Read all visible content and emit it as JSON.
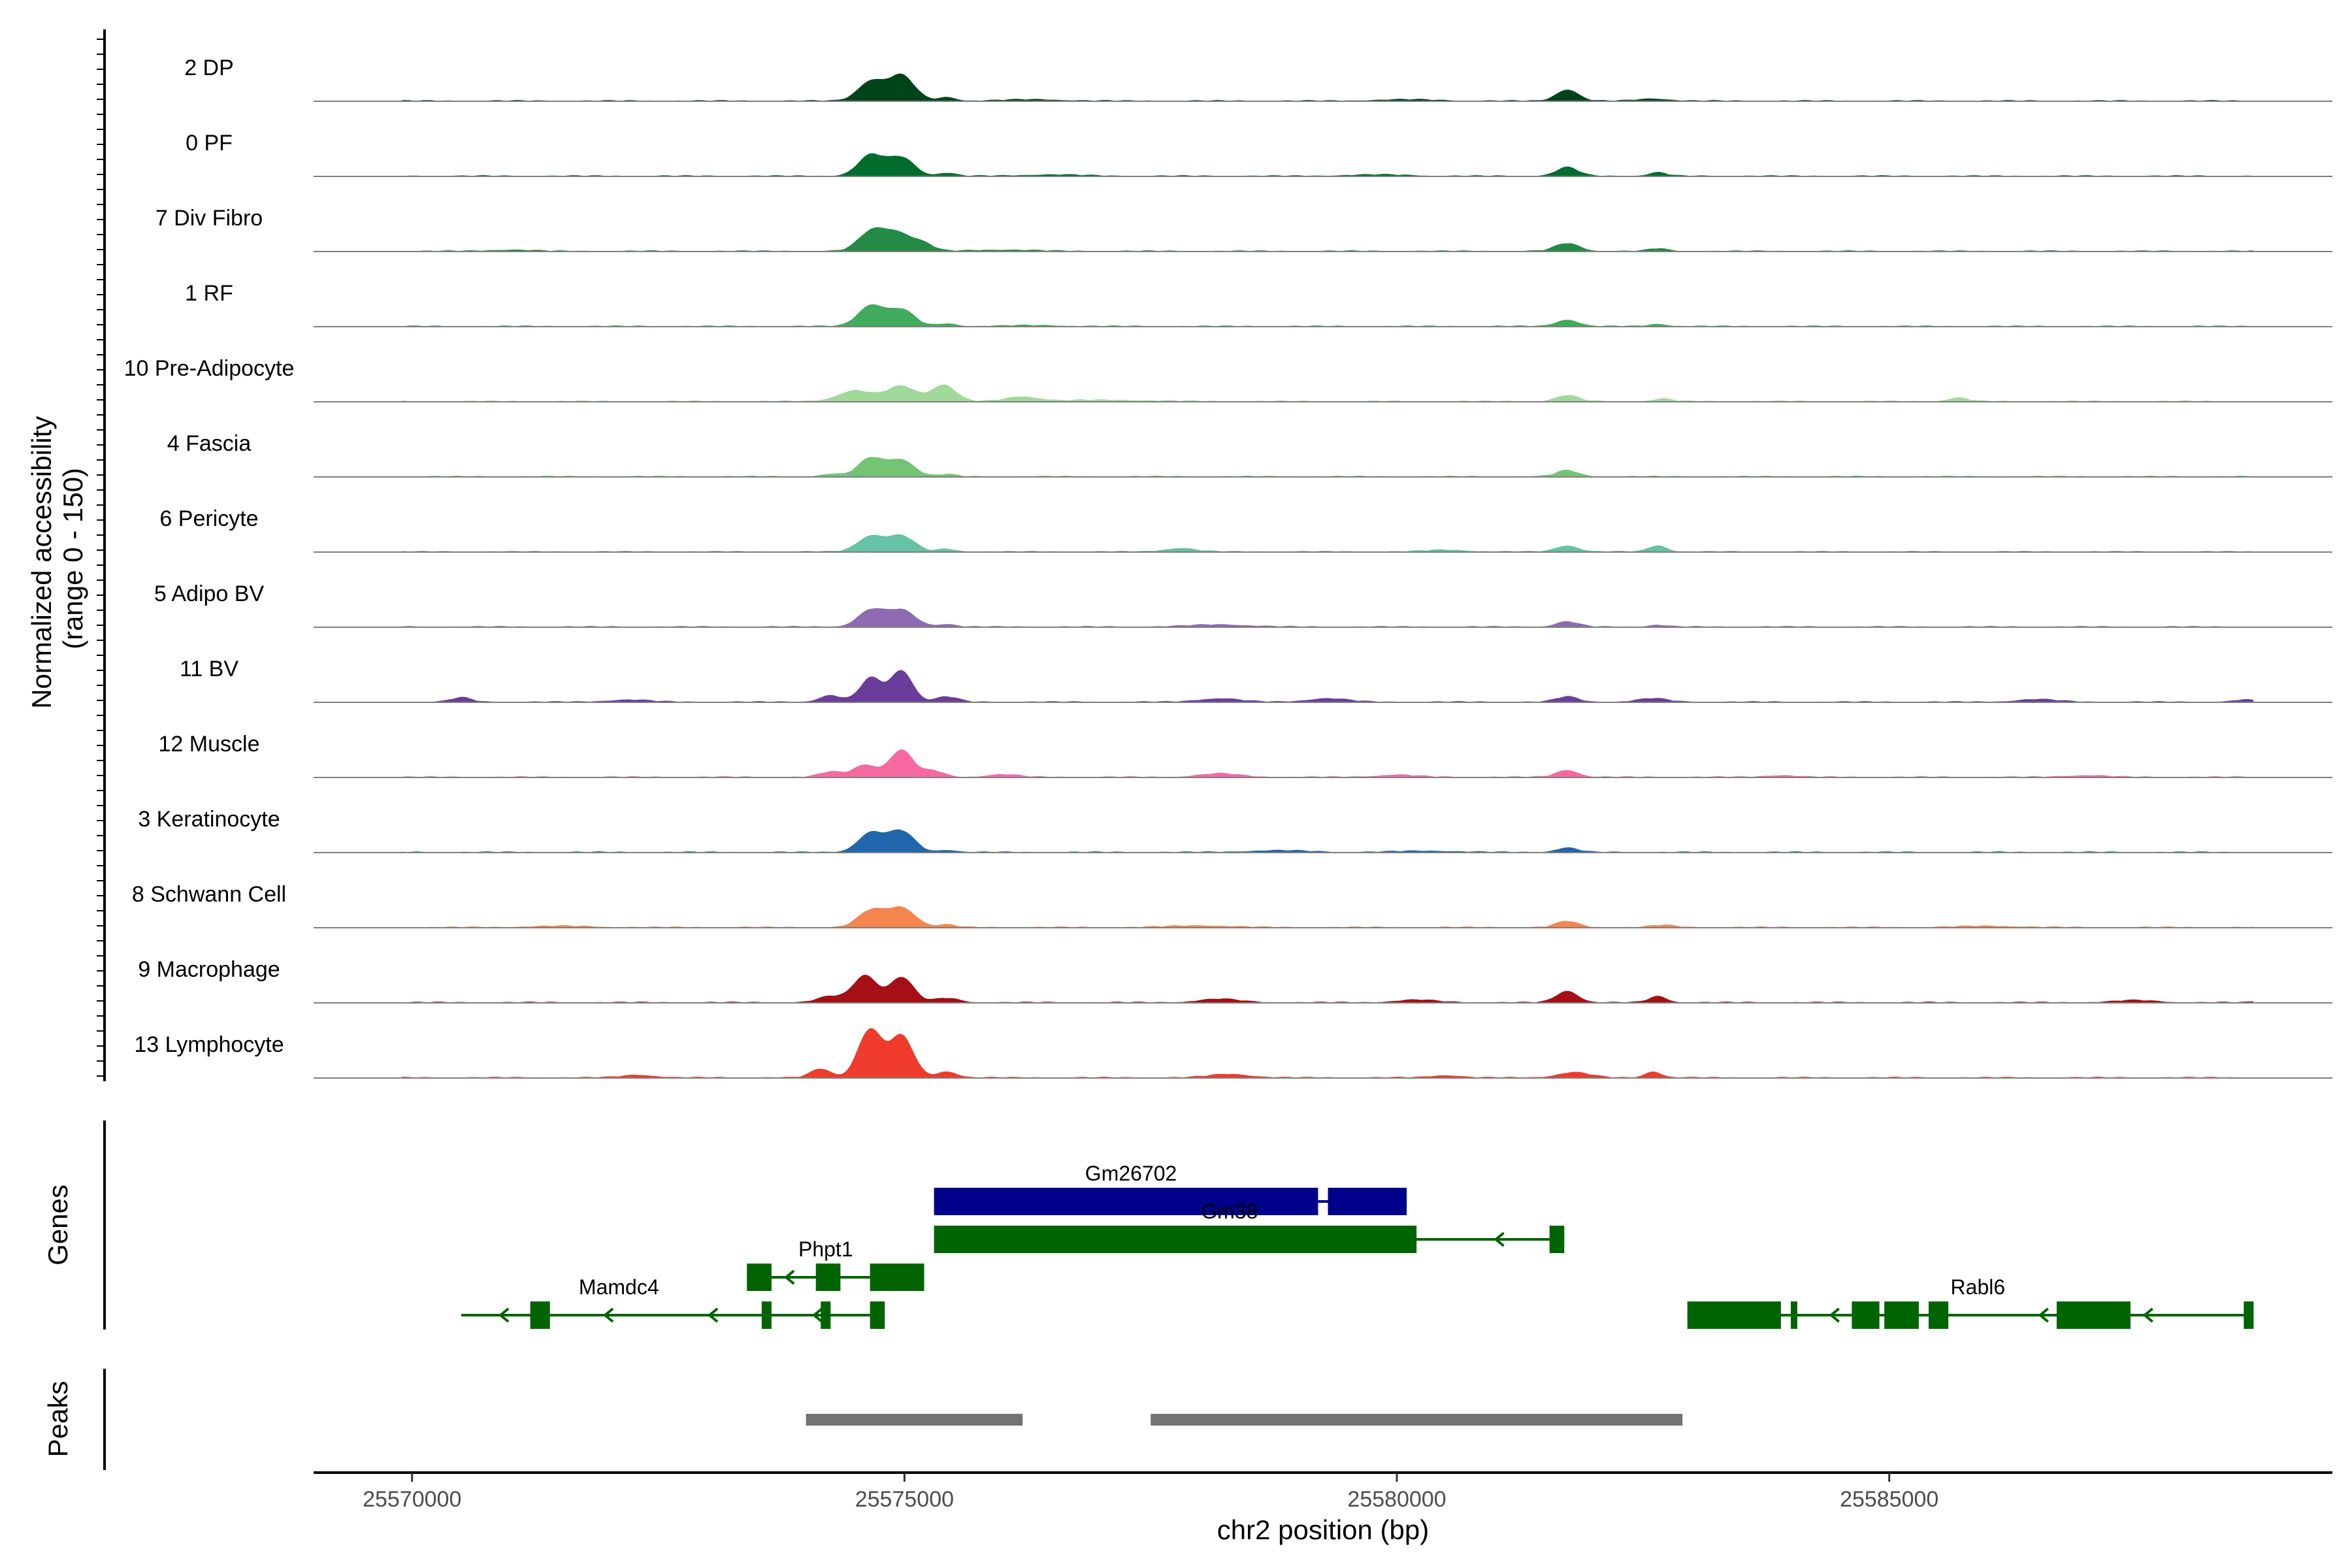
{
  "chart_data": {
    "type": "area",
    "xlabel": "chr2 position (bp)",
    "ylabel": "Normalized accessibility\n(range 0 - 150)",
    "ylabel_lines": [
      "Normalized accessibility",
      "(range 0 - 150)"
    ],
    "y_range": [
      0,
      150
    ],
    "xlim": [
      25569000,
      25589500
    ],
    "x_ticks": [
      25570000,
      25575000,
      25580000,
      25585000
    ],
    "x_tick_labels": [
      "25570000",
      "25575000",
      "25580000",
      "25585000"
    ],
    "tracks": [
      {
        "name": "2 DP",
        "color": "#00441b",
        "peaks": [
          [
            25574660,
            45,
            130
          ],
          [
            25574970,
            58,
            130
          ],
          [
            25575430,
            8,
            90
          ],
          [
            25581730,
            26,
            110
          ],
          [
            25576300,
            3,
            300
          ],
          [
            25580100,
            3,
            300
          ],
          [
            25582600,
            5,
            150
          ]
        ]
      },
      {
        "name": "0 PF",
        "color": "#006d2c",
        "peaks": [
          [
            25574660,
            48,
            130
          ],
          [
            25574970,
            42,
            130
          ],
          [
            25575430,
            7,
            90
          ],
          [
            25581730,
            20,
            110
          ],
          [
            25582650,
            8,
            90
          ],
          [
            25576500,
            3,
            300
          ],
          [
            25579800,
            3,
            300
          ]
        ]
      },
      {
        "name": "7 Div Fibro",
        "color": "#238b45",
        "peaks": [
          [
            25574660,
            42,
            130
          ],
          [
            25574930,
            42,
            150
          ],
          [
            25575200,
            14,
            100
          ],
          [
            25581730,
            18,
            120
          ],
          [
            25582650,
            6,
            90
          ],
          [
            25576000,
            3,
            300
          ],
          [
            25571000,
            3,
            200
          ]
        ]
      },
      {
        "name": "1 RF",
        "color": "#41ab5d",
        "peaks": [
          [
            25574660,
            48,
            130
          ],
          [
            25574970,
            38,
            130
          ],
          [
            25575430,
            6,
            90
          ],
          [
            25581730,
            15,
            110
          ],
          [
            25582650,
            5,
            90
          ],
          [
            25576300,
            2,
            300
          ]
        ]
      },
      {
        "name": "10 Pre-Adipocyte",
        "color": "#a1d99b",
        "peaks": [
          [
            25574500,
            25,
            170
          ],
          [
            25574970,
            35,
            150
          ],
          [
            25575400,
            38,
            120
          ],
          [
            25576200,
            10,
            160
          ],
          [
            25581730,
            14,
            110
          ],
          [
            25582700,
            6,
            90
          ],
          [
            25585700,
            8,
            100
          ],
          [
            25577000,
            3,
            500
          ]
        ]
      },
      {
        "name": "4 Fascia",
        "color": "#74c476",
        "peaks": [
          [
            25574660,
            42,
            130
          ],
          [
            25574970,
            38,
            130
          ],
          [
            25575430,
            5,
            90
          ],
          [
            25581730,
            14,
            110
          ],
          [
            25574250,
            6,
            90
          ]
        ]
      },
      {
        "name": "6 Pericyte",
        "color": "#66c2a4",
        "peaks": [
          [
            25574660,
            36,
            130
          ],
          [
            25574970,
            36,
            130
          ],
          [
            25575430,
            6,
            90
          ],
          [
            25577800,
            8,
            150
          ],
          [
            25581730,
            14,
            110
          ],
          [
            25582650,
            14,
            90
          ],
          [
            25580500,
            4,
            200
          ]
        ]
      },
      {
        "name": "5 Adipo BV",
        "color": "#8c6bb1",
        "peaks": [
          [
            25574660,
            38,
            130
          ],
          [
            25574970,
            38,
            140
          ],
          [
            25575430,
            6,
            90
          ],
          [
            25581730,
            12,
            110
          ],
          [
            25578200,
            5,
            300
          ],
          [
            25582650,
            4,
            90
          ]
        ]
      },
      {
        "name": "11 BV",
        "color": "#6a3d9a",
        "peaks": [
          [
            25574660,
            55,
            110
          ],
          [
            25574970,
            72,
            110
          ],
          [
            25574250,
            15,
            110
          ],
          [
            25575430,
            12,
            110
          ],
          [
            25581730,
            12,
            110
          ],
          [
            25570500,
            10,
            100
          ],
          [
            25578200,
            8,
            200
          ],
          [
            25579300,
            8,
            200
          ],
          [
            25582600,
            8,
            150
          ],
          [
            25586500,
            6,
            200
          ],
          [
            25588600,
            5,
            100
          ],
          [
            25572200,
            5,
            200
          ]
        ]
      },
      {
        "name": "12 Muscle",
        "color": "#f768a1",
        "peaks": [
          [
            25574600,
            28,
            120
          ],
          [
            25574970,
            62,
            120
          ],
          [
            25575300,
            14,
            100
          ],
          [
            25574250,
            12,
            110
          ],
          [
            25581730,
            16,
            110
          ],
          [
            25576000,
            6,
            150
          ],
          [
            25578200,
            8,
            200
          ],
          [
            25580000,
            5,
            200
          ],
          [
            25583900,
            4,
            150
          ],
          [
            25587000,
            4,
            200
          ]
        ]
      },
      {
        "name": "3 Keratinocyte",
        "color": "#2166ac",
        "peaks": [
          [
            25574660,
            44,
            130
          ],
          [
            25574970,
            48,
            130
          ],
          [
            25575430,
            5,
            90
          ],
          [
            25581730,
            10,
            110
          ],
          [
            25578800,
            4,
            300
          ],
          [
            25580300,
            3,
            300
          ]
        ]
      },
      {
        "name": "8 Schwann Cell",
        "color": "#f4854f",
        "peaks": [
          [
            25574660,
            38,
            130
          ],
          [
            25574970,
            45,
            140
          ],
          [
            25575430,
            6,
            90
          ],
          [
            25581730,
            14,
            110
          ],
          [
            25582700,
            5,
            120
          ],
          [
            25578000,
            4,
            300
          ],
          [
            25571500,
            3,
            300
          ],
          [
            25586000,
            3,
            300
          ]
        ]
      },
      {
        "name": "9 Macrophage",
        "color": "#a50f15",
        "peaks": [
          [
            25574600,
            62,
            120
          ],
          [
            25574970,
            58,
            120
          ],
          [
            25574250,
            14,
            130
          ],
          [
            25575430,
            10,
            120
          ],
          [
            25581730,
            26,
            110
          ],
          [
            25582650,
            14,
            90
          ],
          [
            25578200,
            8,
            200
          ],
          [
            25580200,
            6,
            200
          ],
          [
            25587500,
            5,
            200
          ],
          [
            25588800,
            5,
            80
          ]
        ]
      },
      {
        "name": "13 Lymphocyte",
        "color": "#ef3b2c",
        "peaks": [
          [
            25574650,
            110,
            120
          ],
          [
            25574970,
            95,
            120
          ],
          [
            25574150,
            20,
            100
          ],
          [
            25575430,
            14,
            100
          ],
          [
            25581800,
            12,
            160
          ],
          [
            25582600,
            14,
            80
          ],
          [
            25578300,
            8,
            200
          ],
          [
            25580500,
            5,
            150
          ],
          [
            25572300,
            6,
            160
          ]
        ]
      }
    ],
    "genes": {
      "title": "Genes",
      "labels": [
        {
          "text": "Gm26702",
          "x": 25577300,
          "row": 0
        },
        {
          "text": "Gm38",
          "x": 25578300,
          "row": 1
        },
        {
          "text": "Phpt1",
          "x": 25574200,
          "row": 2
        },
        {
          "text": "Mamdc4",
          "x": 25572100,
          "row": 3
        },
        {
          "text": "Rabl6",
          "x": 25585900,
          "row": 3
        }
      ],
      "models": [
        {
          "color": "#00008b",
          "row": 0,
          "span": [
            25575300,
            25580100
          ],
          "arrow": "right",
          "exons": [
            [
              25575300,
              25579200
            ],
            [
              25579300,
              25580100
            ]
          ]
        },
        {
          "color": "#006400",
          "row": 1,
          "span": [
            25575300,
            25581700
          ],
          "arrow": "left",
          "exons": [
            [
              25575300,
              25580200
            ],
            [
              25581550,
              25581700
            ]
          ]
        },
        {
          "color": "#006400",
          "row": 2,
          "span": [
            25573400,
            25575200
          ],
          "arrow": "left",
          "exons": [
            [
              25573400,
              25573650
            ],
            [
              25574100,
              25574350
            ],
            [
              25574650,
              25575200
            ]
          ]
        },
        {
          "color": "#006400",
          "row": 3,
          "span": [
            25570500,
            25574800
          ],
          "arrow": "left",
          "exons": [
            [
              25571200,
              25571400
            ],
            [
              25573550,
              25573650
            ],
            [
              25574150,
              25574250
            ],
            [
              25574650,
              25574800
            ]
          ]
        },
        {
          "color": "#006400",
          "row": 3,
          "span": [
            25582950,
            25588700
          ],
          "arrow": "left",
          "exons": [
            [
              25582950,
              25583900
            ],
            [
              25584000,
              25584060
            ],
            [
              25584620,
              25584900
            ],
            [
              25584950,
              25585300
            ],
            [
              25585400,
              25585600
            ],
            [
              25586700,
              25587450
            ],
            [
              25588600,
              25588700
            ]
          ]
        }
      ]
    },
    "peaks_track": {
      "title": "Peaks",
      "regions": [
        [
          25574000,
          25576200
        ],
        [
          25577500,
          25582900
        ]
      ],
      "color": "#737373"
    }
  }
}
